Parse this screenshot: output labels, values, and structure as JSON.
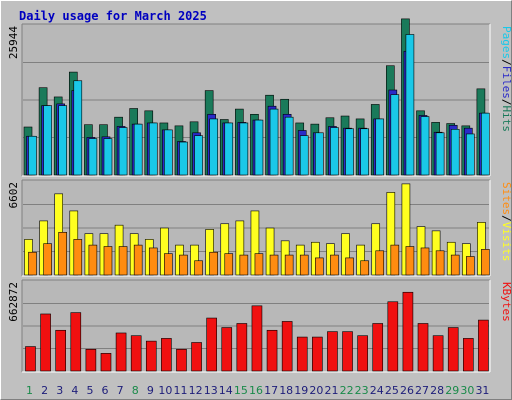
{
  "title": "Daily usage for March 2025",
  "colors": {
    "background": "#c0c0c0",
    "plot_background": "#b8b8b8",
    "gridline": "#808080",
    "hits": "#1a7a5a",
    "files": "#2a2ac8",
    "pages": "#1ac8e8",
    "visits": "#ffff20",
    "sites": "#ff8c10",
    "kbytes": "#f01010",
    "weekday_label": "#1e1e7a",
    "weekend_label": "#1a8a4a"
  },
  "chart_data": [
    {
      "type": "bar",
      "name": "hits-files-pages",
      "max_label": "25944",
      "ylim": [
        0,
        25944
      ],
      "gridlines": [
        6486,
        12972,
        19458
      ],
      "legend": [
        "Pages",
        "/",
        "Files",
        "/",
        "Hits"
      ],
      "categories": [
        "1",
        "2",
        "3",
        "4",
        "5",
        "6",
        "7",
        "8",
        "9",
        "10",
        "11",
        "12",
        "13",
        "14",
        "15",
        "16",
        "17",
        "18",
        "19",
        "20",
        "21",
        "22",
        "23",
        "24",
        "25",
        "26",
        "27",
        "28",
        "29",
        "30",
        "31"
      ],
      "weekend_days": [
        "1",
        "8",
        "15",
        "16",
        "22",
        "23",
        "29",
        "30"
      ],
      "series": [
        {
          "name": "Hits",
          "values": [
            8300,
            15100,
            13500,
            17800,
            8700,
            8700,
            10000,
            11500,
            11100,
            9000,
            8500,
            9200,
            14600,
            9600,
            11400,
            10500,
            13800,
            13100,
            9000,
            8800,
            9900,
            10200,
            9700,
            12200,
            18900,
            27000,
            11100,
            9100,
            8900,
            8500,
            14900
          ]
        },
        {
          "name": "Files",
          "values": [
            6700,
            12000,
            12300,
            14600,
            6500,
            6600,
            8400,
            8800,
            9000,
            7800,
            5800,
            7300,
            10500,
            9000,
            9100,
            9500,
            11900,
            10500,
            7700,
            7300,
            8400,
            8100,
            8100,
            9700,
            14700,
            21400,
            10300,
            7400,
            8600,
            8100,
            10700
          ]
        },
        {
          "name": "Pages",
          "values": [
            6700,
            12000,
            12000,
            16300,
            6300,
            6300,
            8200,
            8800,
            9000,
            7800,
            5700,
            6800,
            9700,
            9000,
            9000,
            9500,
            11400,
            10000,
            6800,
            7300,
            8200,
            8000,
            8000,
            9700,
            13900,
            24300,
            10100,
            7300,
            7900,
            7100,
            10700
          ]
        }
      ]
    },
    {
      "type": "bar",
      "name": "visits-sites",
      "max_label": "6602",
      "ylim": [
        0,
        6602
      ],
      "gridlines": [
        1650,
        3301,
        4951
      ],
      "legend": [
        "Sites",
        "/",
        "Visits"
      ],
      "categories": [
        "1",
        "2",
        "3",
        "4",
        "5",
        "6",
        "7",
        "8",
        "9",
        "10",
        "11",
        "12",
        "13",
        "14",
        "15",
        "16",
        "17",
        "18",
        "19",
        "20",
        "21",
        "22",
        "23",
        "24",
        "25",
        "26",
        "27",
        "28",
        "29",
        "30",
        "31"
      ],
      "series": [
        {
          "name": "Visits",
          "values": [
            2500,
            3800,
            5700,
            4500,
            2900,
            2900,
            3500,
            2900,
            2500,
            3300,
            2100,
            2100,
            3200,
            3600,
            3800,
            4500,
            3300,
            2400,
            2100,
            2300,
            2200,
            2900,
            2100,
            3600,
            5800,
            6400,
            3400,
            3100,
            2300,
            2200,
            3700
          ]
        },
        {
          "name": "Sites",
          "values": [
            1600,
            2200,
            3000,
            2500,
            2100,
            2000,
            2000,
            2100,
            1900,
            1500,
            1400,
            1000,
            1600,
            1500,
            1400,
            1500,
            1400,
            1400,
            1400,
            1200,
            1400,
            1200,
            1000,
            1700,
            2100,
            2000,
            1900,
            1700,
            1400,
            1300,
            1800
          ]
        }
      ]
    },
    {
      "type": "bar",
      "name": "kbytes",
      "max_label": "662872",
      "ylim": [
        0,
        662872
      ],
      "gridlines": [
        165718,
        331436,
        497154
      ],
      "legend": [
        "KBytes"
      ],
      "categories": [
        "1",
        "2",
        "3",
        "4",
        "5",
        "6",
        "7",
        "8",
        "9",
        "10",
        "11",
        "12",
        "13",
        "14",
        "15",
        "16",
        "17",
        "18",
        "19",
        "20",
        "21",
        "22",
        "23",
        "24",
        "25",
        "26",
        "27",
        "28",
        "29",
        "30",
        "31"
      ],
      "series": [
        {
          "name": "KBytes",
          "values": [
            180000,
            420000,
            300000,
            430000,
            160000,
            130000,
            280000,
            260000,
            220000,
            240000,
            160000,
            210000,
            390000,
            320000,
            350000,
            480000,
            300000,
            365000,
            250000,
            250000,
            290000,
            290000,
            260000,
            350000,
            510000,
            580000,
            350000,
            260000,
            320000,
            240000,
            375000
          ]
        }
      ]
    }
  ]
}
